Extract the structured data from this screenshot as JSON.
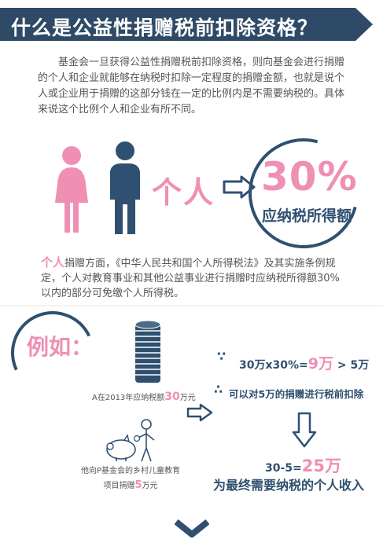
{
  "header": {
    "title": "什么是公益性捐赠税前扣除资格？"
  },
  "intro": {
    "text": "基金会一旦获得公益性捐赠税前扣除资格，则向基金会进行捐赠的个人和企业就能够在纳税时扣除一定程度的捐赠金额，也就是说个人或企业用于捐赠的这部分钱在一定的比例内是不需要纳税的。具体来说这个比例个人和企业有所不同。"
  },
  "individual": {
    "label": "个人",
    "percent": "30%",
    "percent_sub": "应纳税所得额"
  },
  "law": {
    "highlight": "个人",
    "text": "捐赠方面，《中华人民共和国个人所得税法》及其实施条例规定，个人对教育事业和其他公益事业进行捐赠时应纳税所得额30%以内的部分可免缴个人所得税。"
  },
  "example": {
    "label": "例如：",
    "caption_a_pre": "A在2013年应纳税额",
    "caption_a_num": "30",
    "caption_a_post": "万元",
    "caption_b_line1": "他向P基金会的乡村儿童教育",
    "caption_b_pre": "项目捐赠",
    "caption_b_num": "5",
    "caption_b_post": "万元",
    "because": "∵",
    "calc1_pre": "30万x30%=",
    "calc1_result": "9万",
    "calc1_post": "> 5万",
    "therefore": "∴",
    "conclusion": "可以对5万的捐赠进行税前扣除",
    "calc2_pre": "30-5=",
    "calc2_result": "25万",
    "final": "为最终需要纳税的个人收入"
  },
  "icons": [
    "female-figure-icon",
    "male-figure-icon",
    "right-arrow-icon",
    "coin-stack-icon",
    "piggy-bank-icon",
    "person-icon",
    "down-arrow-icon",
    "chevron-down-icon"
  ],
  "colors": {
    "navy": "#2f5070",
    "header": "#2e4a66",
    "pink": "#ef8fb3"
  }
}
